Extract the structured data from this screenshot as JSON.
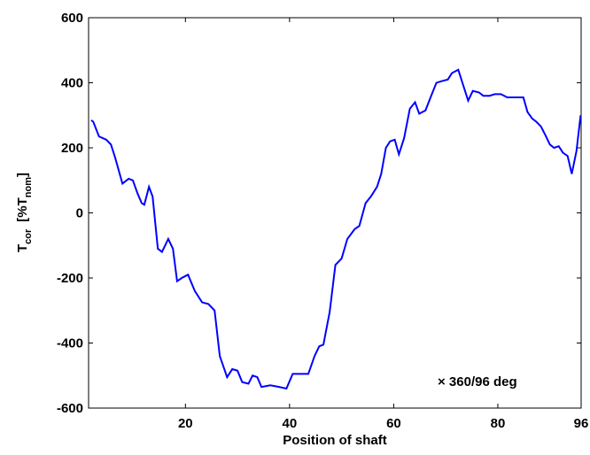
{
  "chart_data": {
    "type": "line",
    "x_label": "Position of shaft",
    "y_label": {
      "main": "T",
      "sub": "cor",
      "unit_open": "[%T",
      "unit_sub": "nom",
      "unit_close": "]"
    },
    "annotation": "× 360/96 deg",
    "xlim": [
      1.4,
      96
    ],
    "xticks": [
      20,
      40,
      60,
      80,
      96
    ],
    "ylim": [
      -600,
      600
    ],
    "yticks": [
      600,
      400,
      200,
      0,
      -200,
      -400,
      -600
    ],
    "series": [
      {
        "color": "#0000ff",
        "x": [
          1.9,
          2.3,
          3.4,
          4.8,
          5.7,
          6.5,
          7.9,
          9.1,
          9.9,
          10.8,
          11.6,
          12.1,
          13.0,
          13.7,
          14.7,
          15.5,
          16.7,
          17.6,
          18.4,
          19.3,
          20.5,
          21.8,
          23.2,
          24.4,
          25.6,
          26.6,
          28.0,
          29.0,
          30.0,
          30.9,
          32.1,
          32.9,
          33.8,
          34.6,
          36.3,
          38.0,
          39.4,
          40.6,
          43.6,
          44.8,
          45.7,
          46.5,
          47.7,
          48.8,
          50.0,
          51.1,
          52.5,
          53.4,
          54.6,
          55.6,
          56.8,
          57.6,
          58.5,
          59.3,
          60.2,
          61.0,
          62.0,
          63.1,
          64.1,
          64.9,
          66.1,
          67.2,
          68.2,
          69.2,
          70.4,
          71.2,
          72.4,
          73.3,
          74.3,
          75.2,
          76.4,
          77.2,
          78.4,
          79.4,
          80.6,
          81.8,
          82.8,
          83.9,
          84.9,
          85.7,
          86.6,
          87.4,
          88.3,
          89.1,
          90.0,
          90.8,
          91.7,
          92.5,
          93.4,
          94.2,
          95.1,
          95.9
        ],
        "values": [
          285,
          280,
          235,
          225,
          210,
          170,
          90,
          105,
          100,
          60,
          30,
          25,
          80,
          50,
          -110,
          -120,
          -80,
          -110,
          -210,
          -200,
          -190,
          -240,
          -275,
          -280,
          -300,
          -440,
          -505,
          -480,
          -485,
          -520,
          -525,
          -500,
          -505,
          -535,
          -530,
          -535,
          -540,
          -495,
          -495,
          -440,
          -410,
          -405,
          -305,
          -160,
          -140,
          -80,
          -50,
          -40,
          30,
          50,
          80,
          120,
          200,
          220,
          225,
          180,
          230,
          320,
          340,
          305,
          315,
          360,
          400,
          405,
          410,
          430,
          440,
          395,
          345,
          375,
          370,
          360,
          360,
          365,
          365,
          355,
          355,
          355,
          355,
          310,
          290,
          280,
          265,
          240,
          210,
          200,
          205,
          185,
          175,
          120,
          190,
          300
        ]
      }
    ]
  }
}
